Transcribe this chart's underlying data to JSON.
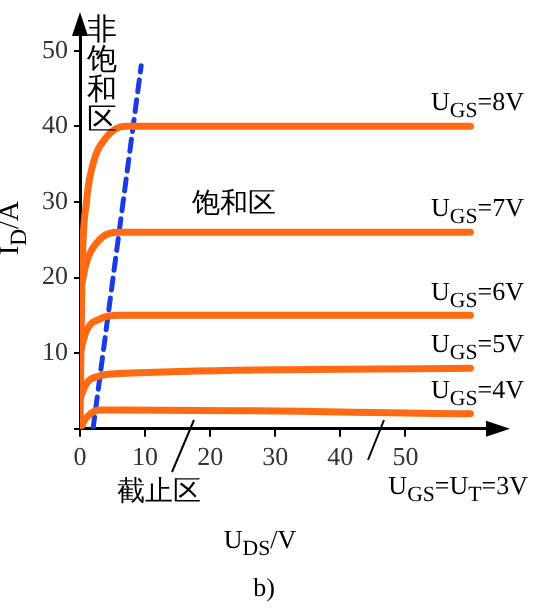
{
  "chart_data": {
    "type": "line",
    "xlabel": "U$_{DS}$/V",
    "ylabel": "I$_{D}$/A",
    "xlim": [
      0,
      63
    ],
    "ylim": [
      0,
      53
    ],
    "xticks": [
      0,
      10,
      20,
      30,
      40,
      50
    ],
    "yticks": [
      {
        "value": 0,
        "label": null
      },
      10,
      20,
      30,
      40,
      50
    ],
    "grid": false,
    "marker": "none",
    "line_style": "solid",
    "series": [
      {
        "name": "U$_{GS}$=8V",
        "color": "#ff6a13",
        "x": [
          0,
          0.3,
          1,
          2,
          4,
          7,
          10,
          60
        ],
        "values": [
          0,
          20,
          30,
          35,
          38.5,
          40,
          40,
          40
        ]
      },
      {
        "name": "U$_{GS}$=7V",
        "color": "#ff6a13",
        "x": [
          0,
          1,
          3,
          6,
          60
        ],
        "values": [
          18,
          22,
          25,
          26,
          26
        ]
      },
      {
        "name": "U$_{GS}$=6V",
        "color": "#ff6a13",
        "x": [
          0,
          1,
          3,
          6,
          60
        ],
        "values": [
          10,
          13,
          14.5,
          15,
          15
        ]
      },
      {
        "name": "U$_{GS}$=5V",
        "color": "#ff6a13",
        "x": [
          0,
          1,
          3,
          6,
          60
        ],
        "values": [
          4,
          6,
          7,
          7.3,
          8
        ]
      },
      {
        "name": "U$_{GS}$=4V",
        "color": "#ff6a13",
        "x": [
          0,
          1,
          3,
          6,
          60
        ],
        "values": [
          0,
          1.5,
          2.5,
          2.5,
          2
        ]
      },
      {
        "color": "#1a3ce0",
        "line_style": "dashed",
        "x": [
          2,
          9.4
        ],
        "values": [
          0,
          48
        ]
      }
    ],
    "annotations": [
      "非饱和区",
      "饱和区",
      "截止区",
      "U$_{GS}$=U$_{T}$=3V",
      "b)"
    ]
  }
}
